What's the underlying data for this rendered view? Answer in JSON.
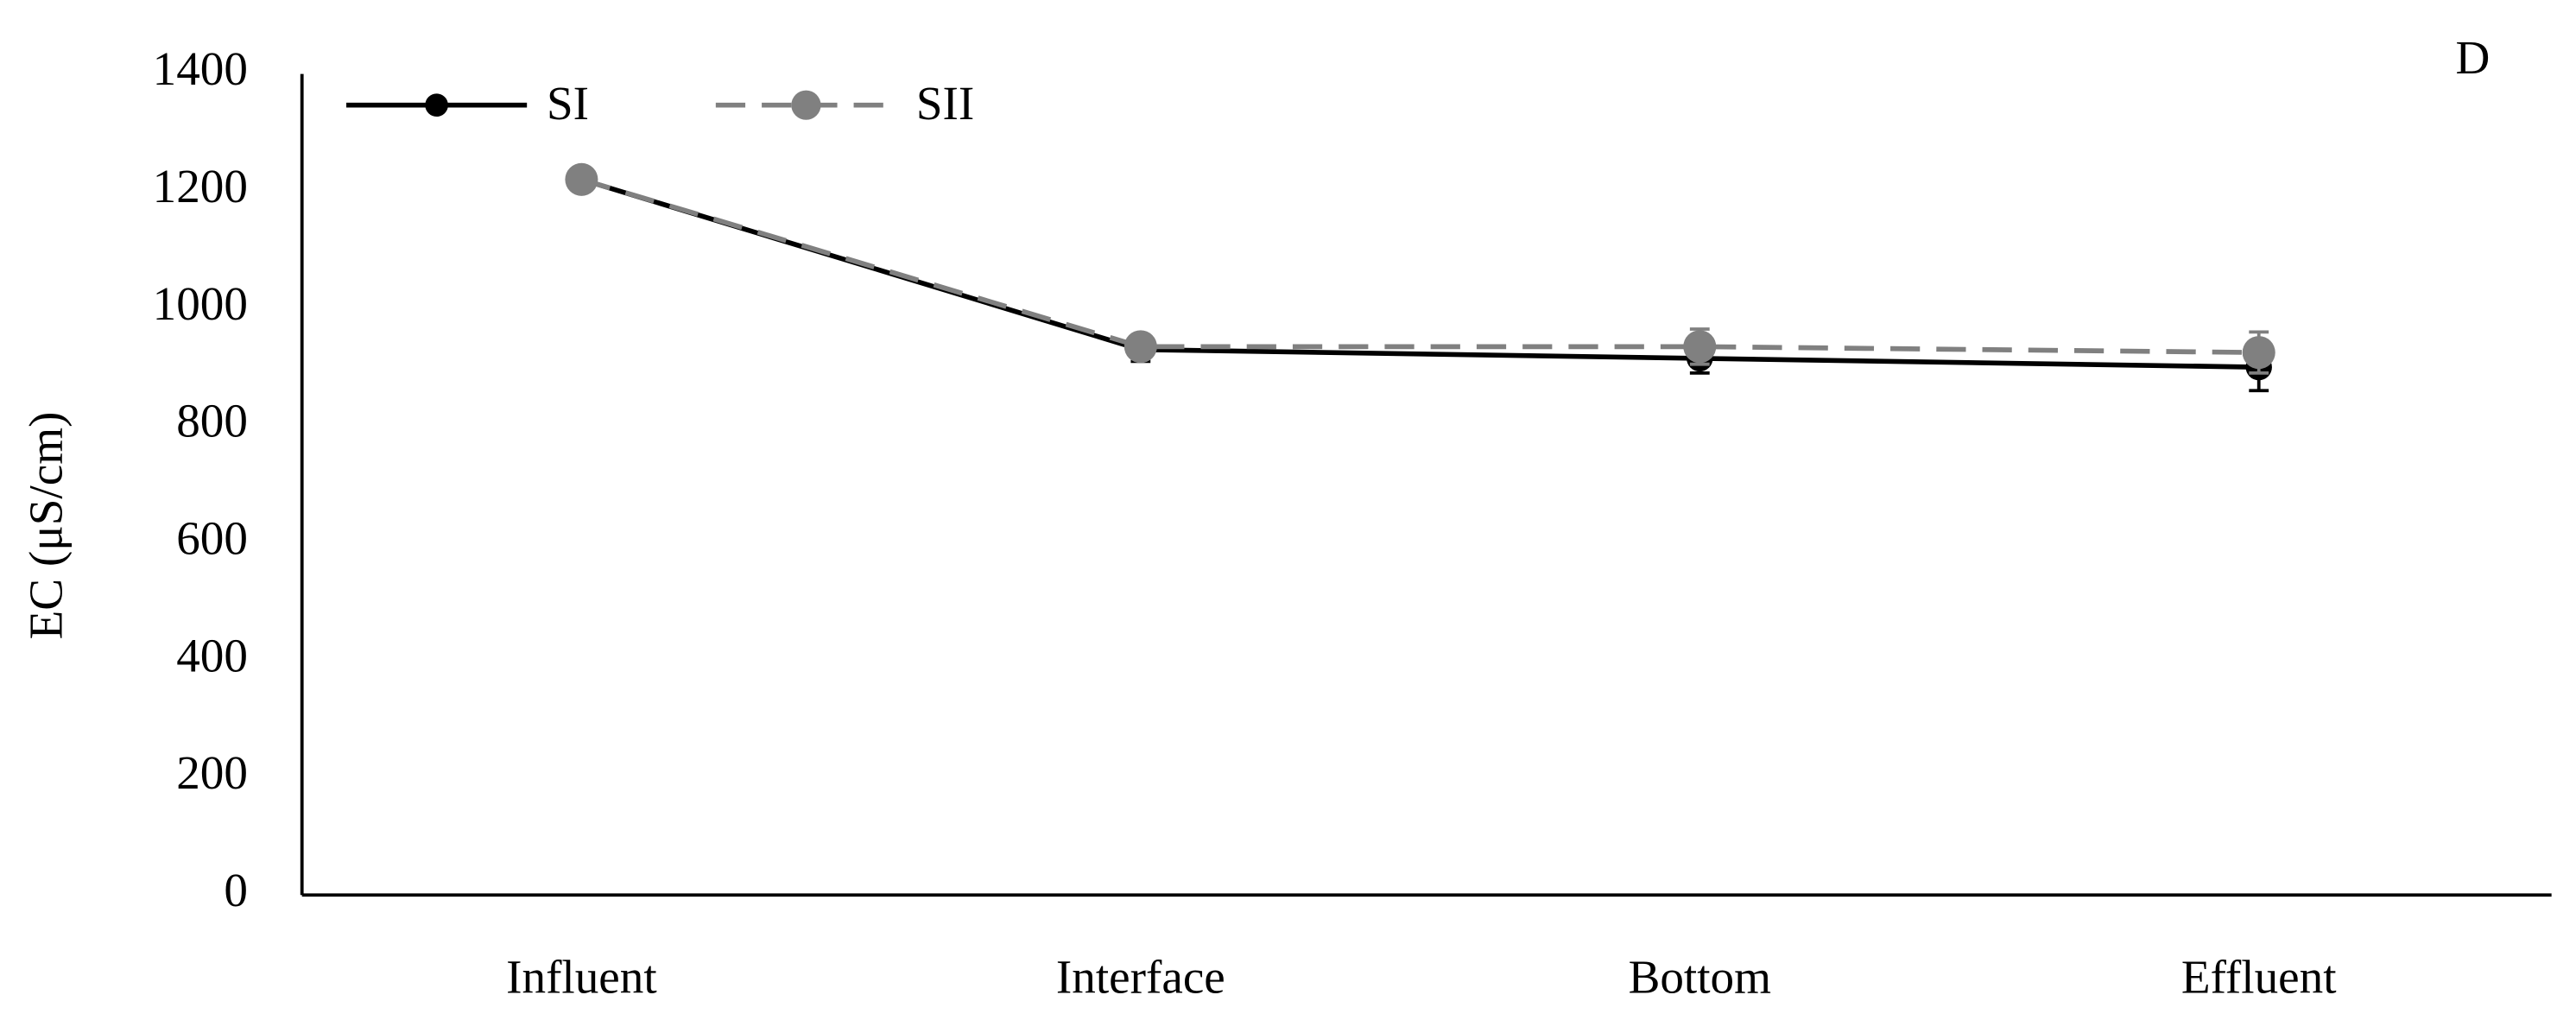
{
  "chart_data": {
    "type": "line",
    "y_label": "EC (μS/cm)",
    "annotation": "D",
    "categories": [
      "Influent",
      "Interface",
      "Bottom",
      "Effluent"
    ],
    "series": [
      {
        "name": "SI",
        "color": "#000000",
        "dash": false,
        "values": [
          1220,
          930,
          915,
          900
        ],
        "errors": [
          15,
          20,
          25,
          40
        ]
      },
      {
        "name": "SII",
        "color": "#808080",
        "dash": true,
        "values": [
          1220,
          935,
          935,
          925
        ],
        "errors": [
          15,
          20,
          30,
          35
        ]
      }
    ],
    "ylim": [
      0,
      1400
    ],
    "yticks": [
      0,
      200,
      400,
      600,
      800,
      1000,
      1200,
      1400
    ],
    "grid": false,
    "legend": "top-left"
  }
}
